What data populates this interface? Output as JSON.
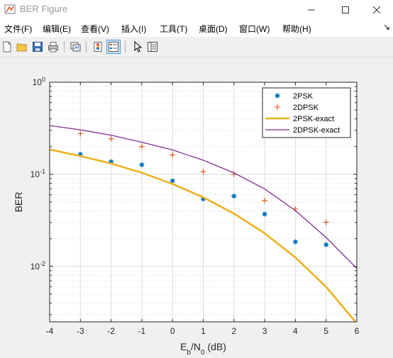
{
  "window": {
    "title": "BER Figure",
    "app_icon": "matlab-figure-icon",
    "controls": [
      "minimize-icon",
      "maximize-icon",
      "close-icon"
    ]
  },
  "menubar": {
    "items": [
      "文件(F)",
      "编辑(E)",
      "查看(V)",
      "插入(I)",
      "工具(T)",
      "桌面(D)",
      "窗口(W)",
      "帮助(H)"
    ],
    "overflow_arrow": "↘"
  },
  "toolbar": {
    "buttons": [
      "new-figure-icon",
      "open-file-icon",
      "save-icon",
      "print-icon",
      "link-plot-icon",
      "colorbar-icon",
      "legend-icon",
      "pointer-icon",
      "property-inspector-icon"
    ]
  },
  "chart_data": {
    "type": "scatter",
    "title": "",
    "xlabel_main": "E",
    "xlabel_sub1": "b",
    "xlabel_mid": "/N",
    "xlabel_sub2": "0",
    "xlabel_tail": " (dB)",
    "ylabel": "BER",
    "xlim": [
      -4,
      6
    ],
    "ylim": [
      0.0025,
      1
    ],
    "yscale": "log",
    "x_ticks": [
      -4,
      -3,
      -2,
      -1,
      0,
      1,
      2,
      3,
      4,
      5,
      6
    ],
    "y_tick_base": "10",
    "y_tick_exponents": [
      "0",
      "-1",
      "-2"
    ],
    "grid": true,
    "legend_position": "top-right",
    "series": [
      {
        "name": "2PSK",
        "kind": "marker-star",
        "color": "#0072bd",
        "x": [
          -3,
          -2,
          -1,
          0,
          1,
          2,
          3,
          4,
          5
        ],
        "y": [
          0.165,
          0.137,
          0.127,
          0.085,
          0.054,
          0.058,
          0.037,
          0.0185,
          0.0172
        ]
      },
      {
        "name": "2DPSK",
        "kind": "marker-plus",
        "color": "#d95319",
        "x": [
          -3,
          -2,
          -1,
          0,
          1,
          2,
          3,
          4,
          5
        ],
        "y": [
          0.276,
          0.243,
          0.2,
          0.162,
          0.107,
          0.1,
          0.052,
          0.042,
          0.0302
        ]
      },
      {
        "name": "2PSK-exact",
        "kind": "line",
        "color": "#edb120",
        "x": [
          -4,
          -3,
          -2,
          -1,
          0,
          1,
          2,
          3,
          4,
          5,
          6
        ],
        "y": [
          0.186,
          0.158,
          0.131,
          0.104,
          0.0786,
          0.0563,
          0.0375,
          0.0229,
          0.0125,
          0.006,
          0.0024
        ]
      },
      {
        "name": "2DPSK-exact",
        "kind": "line",
        "color": "#7e2f8e",
        "x": [
          -4,
          -3,
          -2,
          -1,
          0,
          1,
          2,
          3,
          4,
          5,
          6
        ],
        "y": [
          0.3385,
          0.3042,
          0.2659,
          0.2233,
          0.1839,
          0.1424,
          0.1037,
          0.0694,
          0.0404,
          0.0206,
          0.0095
        ]
      }
    ]
  }
}
